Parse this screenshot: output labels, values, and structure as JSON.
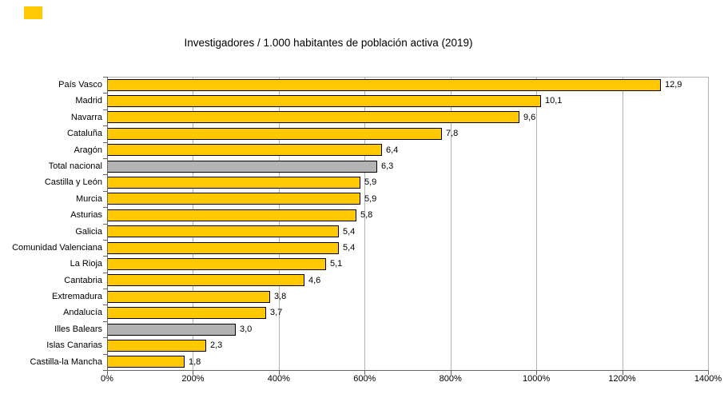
{
  "chart_data": {
    "type": "bar",
    "orientation": "horizontal",
    "title": "Investigadores / 1.000 habitantes de población activa (2019)",
    "categories": [
      "País Vasco",
      "Madrid",
      "Navarra",
      "Cataluña",
      "Aragón",
      "Total nacional",
      "Castilla y León",
      "Murcia",
      "Asturias",
      "Galicia",
      "Comunidad Valenciana",
      "La Rioja",
      "Cantabria",
      "Extremadura",
      "Andalucía",
      "Illes Balears",
      "Islas Canarias",
      "Castilla-la Mancha"
    ],
    "values": [
      12.9,
      10.1,
      9.6,
      7.8,
      6.4,
      6.3,
      5.9,
      5.9,
      5.8,
      5.4,
      5.4,
      5.1,
      4.6,
      3.8,
      3.7,
      3.0,
      2.3,
      1.8
    ],
    "value_labels": [
      "12,9",
      "10,1",
      "9,6",
      "7,8",
      "6,4",
      "6,3",
      "5,9",
      "5,9",
      "5,8",
      "5,4",
      "5,4",
      "5,1",
      "4,6",
      "3,8",
      "3,7",
      "3,0",
      "2,3",
      "1,8"
    ],
    "highlight_categories": [
      "Total nacional",
      "Illes Balears"
    ],
    "xlabel": "",
    "ylabel": "",
    "x_axis": {
      "tick_labels": [
        "0%",
        "200%",
        "400%",
        "600%",
        "800%",
        "1000%",
        "1200%",
        "1400%"
      ],
      "min": 0,
      "max": 1400,
      "unit": "%",
      "value_to_percent_factor": 100
    },
    "grid": true,
    "legend": false,
    "colors": {
      "bar": "#FFC800",
      "highlight_bar": "#B3B3B3",
      "bar_border": "#000000",
      "gridline": "#B3B3B3",
      "axis": "#666666",
      "text": "#000000",
      "background": "#FFFFFF",
      "corner_swatch": "#FFC800"
    }
  }
}
